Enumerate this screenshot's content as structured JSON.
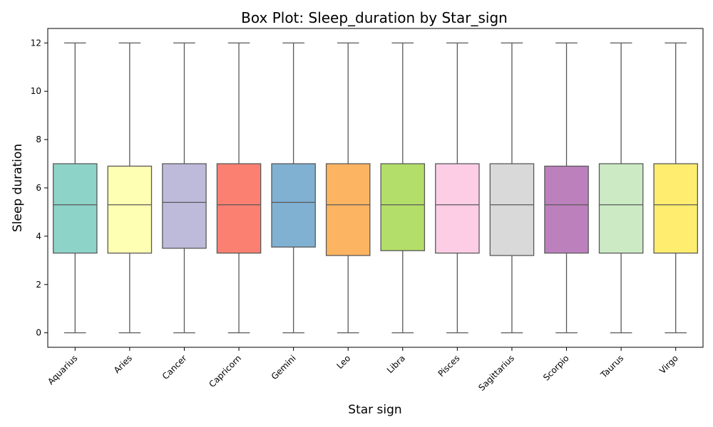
{
  "chart_data": {
    "type": "box",
    "title": "Box Plot: Sleep_duration by Star_sign",
    "xlabel": "Star sign",
    "ylabel": "Sleep duration",
    "ylim": [
      -0.6,
      12.6
    ],
    "yticks": [
      0,
      2,
      4,
      6,
      8,
      10,
      12
    ],
    "ytick_labels": [
      "0",
      "2",
      "4",
      "6",
      "8",
      "10",
      "12"
    ],
    "grid": false,
    "legend": "none",
    "categories": [
      "Aquarius",
      "Aries",
      "Cancer",
      "Capricorn",
      "Gemini",
      "Leo",
      "Libra",
      "Pisces",
      "Sagittarius",
      "Scorpio",
      "Taurus",
      "Virgo"
    ],
    "boxes": [
      {
        "min": 0,
        "q1": 3.3,
        "median": 5.3,
        "q3": 7.0,
        "max": 12,
        "color": "#8dd3c7"
      },
      {
        "min": 0,
        "q1": 3.3,
        "median": 5.3,
        "q3": 6.9,
        "max": 12,
        "color": "#ffffb3"
      },
      {
        "min": 0,
        "q1": 3.5,
        "median": 5.4,
        "q3": 7.0,
        "max": 12,
        "color": "#bebada"
      },
      {
        "min": 0,
        "q1": 3.3,
        "median": 5.3,
        "q3": 7.0,
        "max": 12,
        "color": "#fb8072"
      },
      {
        "min": 0,
        "q1": 3.55,
        "median": 5.4,
        "q3": 7.0,
        "max": 12,
        "color": "#80b1d3"
      },
      {
        "min": 0,
        "q1": 3.2,
        "median": 5.3,
        "q3": 7.0,
        "max": 12,
        "color": "#fdb462"
      },
      {
        "min": 0,
        "q1": 3.4,
        "median": 5.3,
        "q3": 7.0,
        "max": 12,
        "color": "#b3de69"
      },
      {
        "min": 0,
        "q1": 3.3,
        "median": 5.3,
        "q3": 7.0,
        "max": 12,
        "color": "#fccde5"
      },
      {
        "min": 0,
        "q1": 3.2,
        "median": 5.3,
        "q3": 7.0,
        "max": 12,
        "color": "#d9d9d9"
      },
      {
        "min": 0,
        "q1": 3.3,
        "median": 5.3,
        "q3": 6.9,
        "max": 12,
        "color": "#bc80bd"
      },
      {
        "min": 0,
        "q1": 3.3,
        "median": 5.3,
        "q3": 7.0,
        "max": 12,
        "color": "#ccebc5"
      },
      {
        "min": 0,
        "q1": 3.3,
        "median": 5.3,
        "q3": 7.0,
        "max": 12,
        "color": "#ffed6f"
      }
    ]
  }
}
